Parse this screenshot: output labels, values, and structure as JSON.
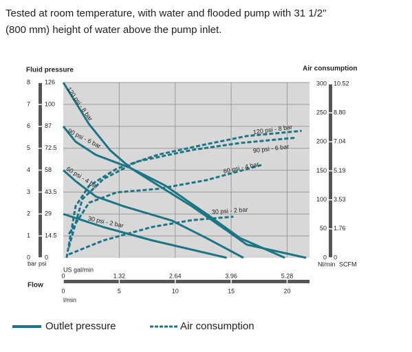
{
  "heading": [
    "Tested at room temperature, with water and flooded pump with 31 1/2\"",
    "(800 mm) height of water above the pump inlet."
  ],
  "chart_data": {
    "type": "line",
    "ylabel": "Fluid pressure",
    "y2label": "Air consumption",
    "ylim": [
      0,
      8
    ],
    "yticks": [
      0,
      1,
      2,
      3,
      4,
      5,
      6,
      7,
      8
    ],
    "y_units": [
      "bar",
      "psi"
    ],
    "yticks_psi": [
      0,
      14.5,
      29,
      43.5,
      58,
      72.5,
      87,
      100,
      126
    ],
    "y2lim": [
      0,
      300
    ],
    "y2ticks": [
      0,
      50,
      100,
      150,
      200,
      250,
      300
    ],
    "y2_units": [
      "Nl/min",
      "SCFM"
    ],
    "y2ticks_scfm": [
      0,
      1.76,
      3.53,
      5.19,
      7.04,
      {
        "value": 8.8,
        "label": "8.80"
      },
      10.52
    ],
    "xlim": [
      0,
      22
    ],
    "xticks": [
      0,
      5,
      10,
      15,
      20
    ],
    "xlabel": "l/min",
    "xticks_gal": [
      0,
      1.32,
      2.64,
      3.96,
      5.28
    ],
    "xlabel_gal": "US gal/min",
    "flow_label": "Flow",
    "grid": true,
    "color": "#1b7585",
    "outlet_pressure": {
      "name": "Outlet pressure",
      "line_style": "solid",
      "series": [
        {
          "name": "120 psi - 8 bar",
          "x": [
            0,
            1.1,
            2.3,
            4.2,
            6,
            8.5,
            11.5,
            14.6,
            16.4,
            21.7
          ],
          "values": [
            8,
            7.1,
            6.1,
            4.9,
            4.1,
            3.3,
            2.35,
            1.25,
            0.6,
            0
          ]
        },
        {
          "name": "90 psi - 6 bar",
          "x": [
            0,
            1.1,
            2.9,
            6,
            9.1,
            12.8,
            15.8,
            19.8
          ],
          "values": [
            6,
            5.3,
            4.7,
            4.1,
            3.3,
            2,
            0.9,
            0
          ]
        },
        {
          "name": "60 psi - 4 bar",
          "x": [
            0,
            1.1,
            2.9,
            5.4,
            9.7,
            12.8,
            16.1
          ],
          "values": [
            4,
            3.5,
            2.8,
            2.35,
            1.7,
            0.9,
            0
          ]
        },
        {
          "name": "30 psi - 2 bar",
          "x": [
            0,
            3.6,
            7.9,
            14.6
          ],
          "values": [
            2,
            1.4,
            0.8,
            0
          ]
        }
      ]
    },
    "air_consumption": {
      "name": "Air consumption",
      "line_style": "dashed",
      "series": [
        {
          "name": "120 psi - 8 bar",
          "x": [
            0.3,
            1.1,
            2.3,
            4.8,
            8.5,
            12.8,
            16.4,
            21.3
          ],
          "values": [
            0,
            89,
            124,
            154,
            178,
            196,
            210,
            219
          ]
        },
        {
          "name": "90 psi - 6 bar",
          "x": [
            0.5,
            1.7,
            3.6,
            6.6,
            11.5,
            15.8,
            20.7
          ],
          "values": [
            18,
            101,
            136,
            166,
            186,
            198,
            207
          ]
        },
        {
          "name": "60 psi - 4 bar",
          "x": [
            0.5,
            2.3,
            4.8,
            8.5,
            12.8,
            17.7
          ],
          "values": [
            41,
            95,
            113,
            119,
            134,
            160
          ]
        },
        {
          "name": "30 psi - 2 bar",
          "x": [
            0.5,
            3.6,
            7.9,
            11.5,
            15.2
          ],
          "values": [
            6,
            30,
            53,
            65,
            71
          ]
        }
      ]
    }
  }
}
